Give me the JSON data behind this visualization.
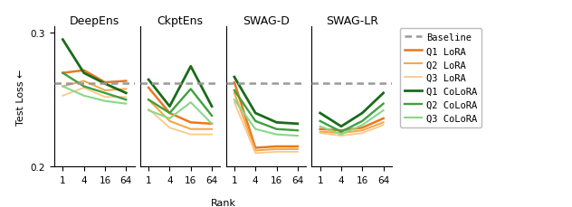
{
  "ranks": [
    1,
    4,
    16,
    64
  ],
  "baseline": 0.262,
  "panels": [
    "DeepEns",
    "CkptEns",
    "SWAG-D",
    "SWAG-LR"
  ],
  "series": {
    "Q1 LoRA": {
      "color": "#E87820",
      "lw": 1.8,
      "alpha": 1.0,
      "data": [
        [
          0.27,
          0.272,
          0.263,
          0.264
        ],
        [
          0.259,
          0.24,
          0.233,
          0.232
        ],
        [
          0.263,
          0.214,
          0.215,
          0.215
        ],
        [
          0.228,
          0.227,
          0.229,
          0.236
        ]
      ]
    },
    "Q2 LoRA": {
      "color": "#F5A84B",
      "lw": 1.5,
      "alpha": 1.0,
      "data": [
        [
          0.26,
          0.264,
          0.257,
          0.258
        ],
        [
          0.25,
          0.234,
          0.228,
          0.228
        ],
        [
          0.255,
          0.212,
          0.213,
          0.213
        ],
        [
          0.226,
          0.225,
          0.227,
          0.233
        ]
      ]
    },
    "Q3 LoRA": {
      "color": "#FAC98A",
      "lw": 1.3,
      "alpha": 1.0,
      "data": [
        [
          0.253,
          0.259,
          0.252,
          0.252
        ],
        [
          0.243,
          0.229,
          0.224,
          0.224
        ],
        [
          0.248,
          0.21,
          0.211,
          0.211
        ],
        [
          0.225,
          0.223,
          0.225,
          0.231
        ]
      ]
    },
    "Q1 CoLoRA": {
      "color": "#1B6B1B",
      "lw": 2.0,
      "alpha": 1.0,
      "data": [
        [
          0.295,
          0.27,
          0.262,
          0.255
        ],
        [
          0.265,
          0.245,
          0.275,
          0.245
        ],
        [
          0.267,
          0.24,
          0.233,
          0.232
        ],
        [
          0.24,
          0.23,
          0.24,
          0.255
        ]
      ]
    },
    "Q2 CoLoRA": {
      "color": "#3DA13D",
      "lw": 1.7,
      "alpha": 1.0,
      "data": [
        [
          0.27,
          0.26,
          0.255,
          0.25
        ],
        [
          0.25,
          0.24,
          0.258,
          0.238
        ],
        [
          0.257,
          0.234,
          0.228,
          0.227
        ],
        [
          0.234,
          0.226,
          0.234,
          0.247
        ]
      ]
    },
    "Q3 CoLoRA": {
      "color": "#88D888",
      "lw": 1.5,
      "alpha": 1.0,
      "data": [
        [
          0.26,
          0.253,
          0.249,
          0.247
        ],
        [
          0.242,
          0.236,
          0.248,
          0.232
        ],
        [
          0.25,
          0.228,
          0.224,
          0.223
        ],
        [
          0.23,
          0.224,
          0.231,
          0.242
        ]
      ]
    }
  },
  "ylim": [
    0.2,
    0.305
  ],
  "yticks": [
    0.2,
    0.3
  ],
  "xtick_labels": [
    "1",
    "4",
    "16",
    "64"
  ],
  "xlabel": "Rank",
  "ylabel": "Test Loss ←",
  "baseline_color": "#999999",
  "title_fontsize": 9,
  "label_fontsize": 8,
  "tick_fontsize": 7.5
}
